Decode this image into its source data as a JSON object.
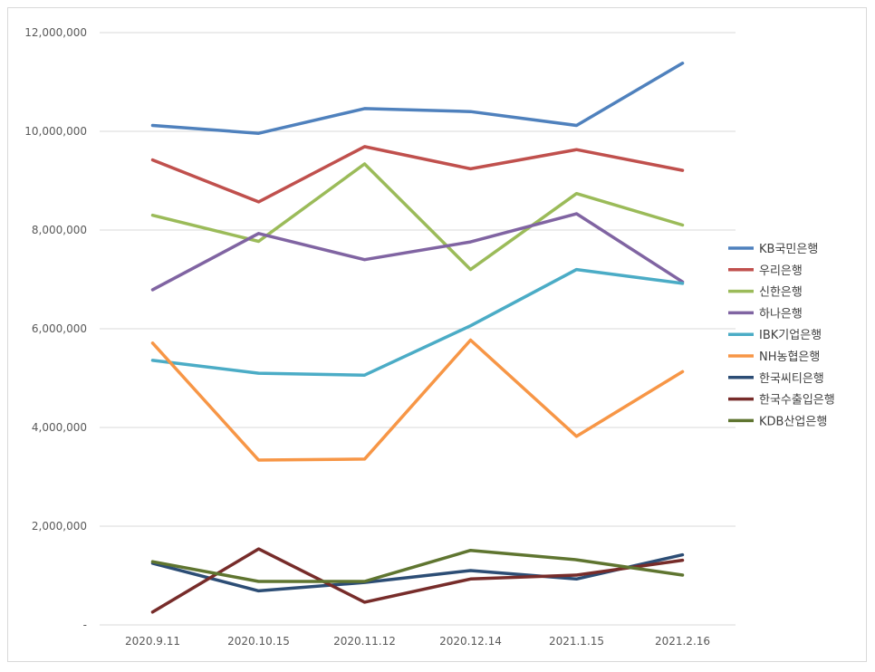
{
  "chart_data": {
    "type": "line",
    "title": "",
    "xlabel": "",
    "ylabel": "",
    "categories": [
      "2020.9.11",
      "2020.10.15",
      "2020.11.12",
      "2020.12.14",
      "2021.1.15",
      "2021.2.16"
    ],
    "ylim": [
      0,
      12000000
    ],
    "yticks": [
      0,
      2000000,
      4000000,
      6000000,
      8000000,
      10000000,
      12000000
    ],
    "ytick_labels": [
      "-",
      "2,000,000",
      "4,000,000",
      "6,000,000",
      "8,000,000",
      "10,000,000",
      "12,000,000"
    ],
    "grid": true,
    "legend_position": "right",
    "series": [
      {
        "name": "KB국민은행",
        "color": "#4F81BD",
        "values": [
          10120000,
          9960000,
          10460000,
          10400000,
          10120000,
          11380000
        ]
      },
      {
        "name": "우리은행",
        "color": "#C0504D",
        "values": [
          9420000,
          8570000,
          9690000,
          9240000,
          9630000,
          9210000
        ]
      },
      {
        "name": "신한은행",
        "color": "#9BBB59",
        "values": [
          8300000,
          7770000,
          9340000,
          7200000,
          8740000,
          8100000
        ]
      },
      {
        "name": "하나은행",
        "color": "#8064A2",
        "values": [
          6790000,
          7930000,
          7400000,
          7760000,
          8330000,
          6950000
        ]
      },
      {
        "name": "IBK기업은행",
        "color": "#4BACC6",
        "values": [
          5360000,
          5100000,
          5060000,
          6060000,
          7200000,
          6920000
        ]
      },
      {
        "name": "NH농협은행",
        "color": "#F79646",
        "values": [
          5710000,
          3340000,
          3360000,
          5770000,
          3820000,
          5130000
        ]
      },
      {
        "name": "한국씨티은행",
        "color": "#2C4D75",
        "values": [
          1250000,
          690000,
          860000,
          1100000,
          930000,
          1420000
        ]
      },
      {
        "name": "한국수출입은행",
        "color": "#772C2A",
        "values": [
          260000,
          1540000,
          460000,
          930000,
          1010000,
          1310000
        ]
      },
      {
        "name": "KDB산업은행",
        "color": "#5F7530",
        "values": [
          1280000,
          880000,
          880000,
          1510000,
          1320000,
          1010000
        ]
      }
    ]
  }
}
